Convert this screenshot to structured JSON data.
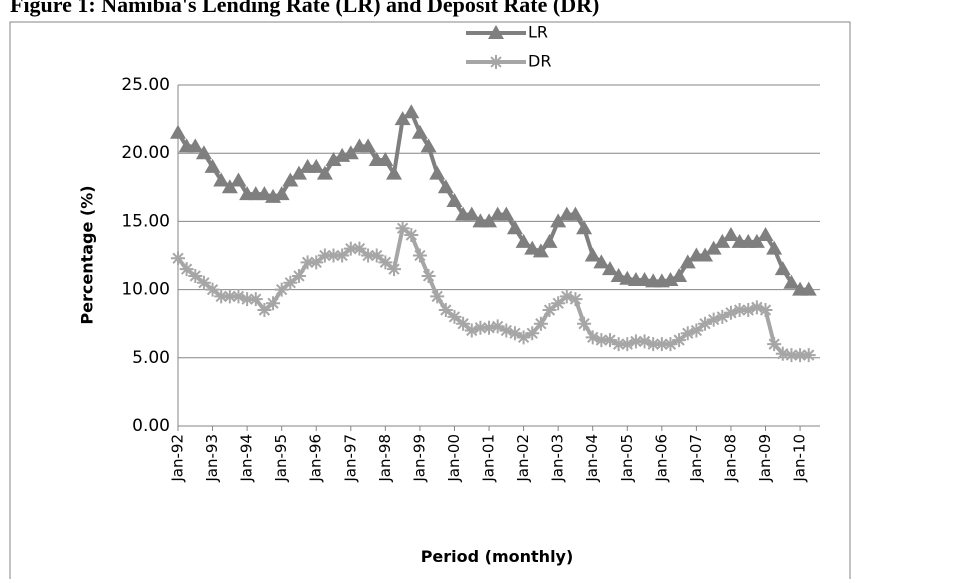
{
  "chart_data": {
    "type": "line",
    "title": "Figure 1: Namibia's Lending Rate (LR) and Deposit Rate (DR)",
    "y_label": "Percentage (%)",
    "x_label": "Period (monthly)",
    "categories": [
      "Jan-92",
      null,
      null,
      null,
      "Jan-93",
      null,
      null,
      null,
      "Jan-94",
      null,
      null,
      null,
      "Jan-95",
      null,
      null,
      null,
      "Jan-96",
      null,
      null,
      null,
      "Jan-97",
      null,
      null,
      null,
      "Jan-98",
      null,
      null,
      null,
      "Jan-99",
      null,
      null,
      null,
      "Jan-00",
      null,
      null,
      null,
      "Jan-01",
      null,
      null,
      null,
      "Jan-02",
      null,
      null,
      null,
      "Jan-03",
      null,
      null,
      null,
      "Jan-04",
      null,
      null,
      null,
      "Jan-05",
      null,
      null,
      null,
      "Jan-06",
      null,
      null,
      null,
      "Jan-07",
      null,
      null,
      null,
      "Jan-08",
      null,
      null,
      null,
      "Jan-09",
      null,
      null,
      null,
      "Jan-10",
      null
    ],
    "series": [
      {
        "name": "LR",
        "color": "#7f7f7f",
        "marker": "triangle",
        "values": [
          21.5,
          20.5,
          20.5,
          20.0,
          19.0,
          18.0,
          17.5,
          18.0,
          17.0,
          17.0,
          17.0,
          16.8,
          17.0,
          18.0,
          18.5,
          19.0,
          19.0,
          18.5,
          19.5,
          19.8,
          20.0,
          20.5,
          20.5,
          19.5,
          19.5,
          18.5,
          22.5,
          23.0,
          21.5,
          20.5,
          18.5,
          17.5,
          16.5,
          15.5,
          15.5,
          15.0,
          15.0,
          15.5,
          15.5,
          14.5,
          13.5,
          13.0,
          12.8,
          13.5,
          15.0,
          15.5,
          15.5,
          14.5,
          12.5,
          12.0,
          11.5,
          11.0,
          10.8,
          10.7,
          10.7,
          10.6,
          10.6,
          10.7,
          11.0,
          12.0,
          12.5,
          12.5,
          13.0,
          13.5,
          14.0,
          13.5,
          13.5,
          13.5,
          14.0,
          13.0,
          11.5,
          10.5,
          10.0,
          10.0
        ]
      },
      {
        "name": "DR",
        "color": "#a6a6a6",
        "marker": "star",
        "values": [
          12.3,
          11.5,
          11.0,
          10.5,
          10.0,
          9.5,
          9.5,
          9.5,
          9.3,
          9.3,
          8.5,
          9.0,
          10.0,
          10.5,
          11.0,
          12.0,
          12.0,
          12.5,
          12.5,
          12.5,
          13.0,
          13.0,
          12.5,
          12.5,
          12.0,
          11.5,
          14.5,
          14.0,
          12.5,
          11.0,
          9.5,
          8.5,
          8.0,
          7.5,
          7.0,
          7.2,
          7.2,
          7.3,
          7.0,
          6.8,
          6.5,
          6.8,
          7.5,
          8.5,
          9.0,
          9.5,
          9.3,
          7.5,
          6.5,
          6.3,
          6.3,
          6.0,
          6.0,
          6.2,
          6.2,
          6.0,
          6.0,
          6.0,
          6.3,
          6.8,
          7.0,
          7.5,
          7.8,
          8.0,
          8.3,
          8.5,
          8.5,
          8.7,
          8.5,
          6.0,
          5.3,
          5.2,
          5.2,
          5.2
        ]
      }
    ],
    "ylim": [
      0,
      25
    ],
    "yticks": [
      {
        "value": 0,
        "label": "0.00"
      },
      {
        "value": 5,
        "label": "5.00"
      },
      {
        "value": 10,
        "label": "10.00"
      },
      {
        "value": 15,
        "label": "15.00"
      },
      {
        "value": 20,
        "label": "20.00"
      },
      {
        "value": 25,
        "label": "25.00"
      }
    ],
    "grid": true,
    "legend": "top"
  }
}
